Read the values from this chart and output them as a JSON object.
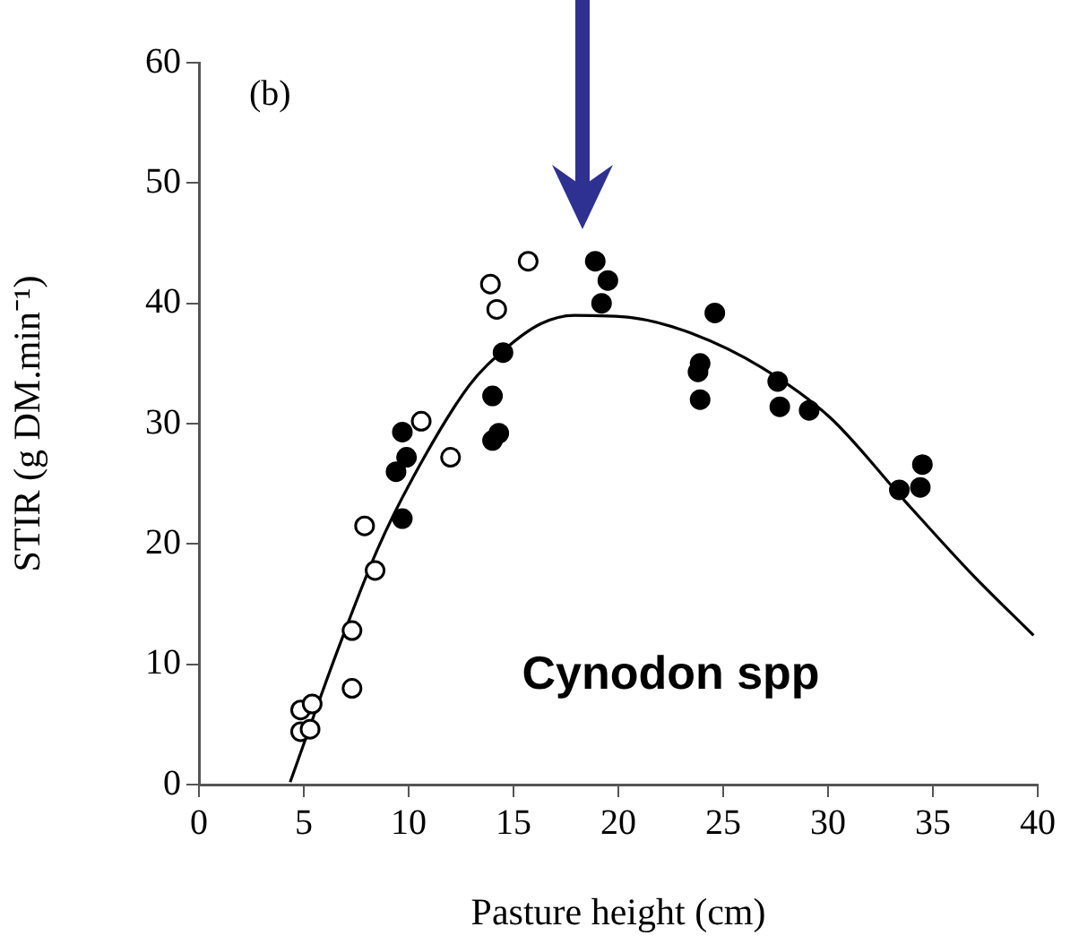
{
  "chart_data": {
    "type": "scatter",
    "xlabel": "Pasture height (cm)",
    "ylabel": "STIR (g DM.min⁻¹)",
    "xlim": [
      0,
      40
    ],
    "ylim": [
      0,
      60
    ],
    "xticks": [
      0,
      5,
      10,
      15,
      20,
      25,
      30,
      35,
      40
    ],
    "yticks": [
      0,
      10,
      20,
      30,
      40,
      50,
      60
    ],
    "grid": false,
    "legend": false,
    "marker": "circle",
    "annotations": [
      "(b)",
      "Cynodon spp"
    ],
    "series": [
      {
        "type": "scatter",
        "color": "#ffffff",
        "x": [
          4.85,
          5.4,
          4.85,
          5.3,
          7.3,
          7.3,
          8.4,
          7.9,
          10.6,
          12.0,
          13.9,
          14.2,
          15.7
        ],
        "values": [
          6.2,
          6.7,
          4.4,
          4.6,
          8.0,
          12.8,
          17.8,
          21.5,
          30.2,
          27.2,
          41.6,
          39.5,
          43.5
        ]
      },
      {
        "type": "scatter",
        "color": "#000000",
        "x": [
          9.7,
          9.9,
          9.4,
          9.7,
          14.5,
          14.0,
          14.0,
          14.3,
          18.9,
          19.5,
          19.2,
          24.6,
          23.9,
          23.8,
          23.9,
          27.6,
          27.7,
          29.1,
          33.4,
          34.4,
          34.5
        ],
        "values": [
          29.3,
          27.2,
          26.0,
          22.1,
          35.9,
          32.3,
          28.6,
          29.2,
          43.5,
          41.9,
          40.0,
          39.2,
          35.0,
          34.3,
          32.0,
          33.5,
          31.4,
          31.1,
          24.5,
          24.7,
          26.6
        ]
      },
      {
        "type": "line",
        "color": "#000000",
        "marker": "none",
        "x": [
          4.35,
          6.6,
          8.5,
          10.2,
          12.9,
          14.6,
          16.3,
          17.9,
          20.7,
          23.5,
          26.8,
          30.1,
          33.7,
          36.8,
          39.8
        ],
        "values": [
          0.2,
          11.1,
          19.5,
          25.5,
          33.2,
          36.2,
          38.3,
          39.0,
          38.8,
          37.5,
          34.7,
          30.5,
          23.5,
          17.6,
          12.4
        ]
      }
    ]
  }
}
